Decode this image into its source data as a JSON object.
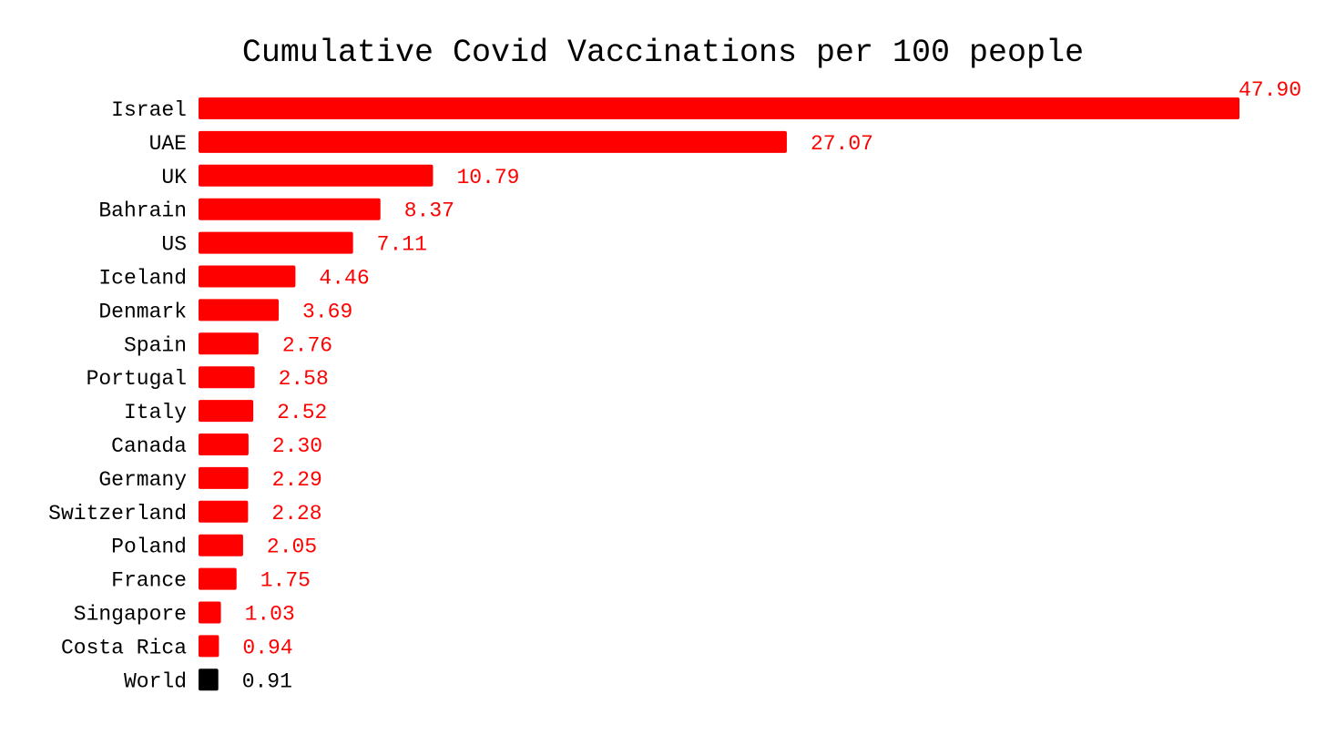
{
  "chart_data": {
    "type": "bar",
    "orientation": "horizontal",
    "title": "Cumulative Covid Vaccinations per 100 people",
    "categories": [
      "Israel",
      "UAE",
      "UK",
      "Bahrain",
      "US",
      "Iceland",
      "Denmark",
      "Spain",
      "Portugal",
      "Italy",
      "Canada",
      "Germany",
      "Switzerland",
      "Poland",
      "France",
      "Singapore",
      "Costa Rica",
      "World"
    ],
    "values": [
      47.9,
      27.07,
      10.79,
      8.37,
      7.11,
      4.46,
      3.69,
      2.76,
      2.58,
      2.52,
      2.3,
      2.29,
      2.28,
      2.05,
      1.75,
      1.03,
      0.94,
      0.91
    ],
    "value_labels": [
      "47.90",
      "27.07",
      "10.79",
      "8.37",
      "7.11",
      "4.46",
      "3.69",
      "2.76",
      "2.58",
      "2.52",
      "2.30",
      "2.29",
      "2.28",
      "2.05",
      "1.75",
      "1.03",
      "0.94",
      "0.91"
    ],
    "highlight_category": "World",
    "colors": {
      "bar": "#ff0000",
      "highlight": "#000000",
      "label": "#ff0000",
      "highlight_label": "#000000"
    },
    "xlim": [
      0,
      47.9
    ],
    "grid": false,
    "legend": "none"
  }
}
